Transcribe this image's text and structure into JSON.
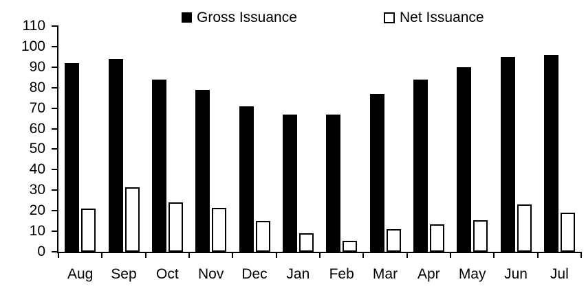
{
  "chart_data": {
    "type": "bar",
    "title": "",
    "xlabel": "",
    "ylabel": "",
    "categories": [
      "Aug",
      "Sep",
      "Oct",
      "Nov",
      "Dec",
      "Jan",
      "Feb",
      "Mar",
      "Apr",
      "May",
      "Jun",
      "Jul"
    ],
    "series": [
      {
        "name": "Gross Issuance",
        "fill": "#000000",
        "values": [
          92,
          94,
          84,
          79,
          71,
          67,
          67,
          77,
          84,
          90,
          95,
          96
        ]
      },
      {
        "name": "Net Issuance",
        "fill": "#ffffff",
        "stroke": "#000000",
        "values": [
          21,
          31.5,
          24,
          21.5,
          15,
          9,
          5.5,
          11,
          13.5,
          15.5,
          23,
          19
        ]
      }
    ],
    "ylim": [
      0,
      110
    ],
    "ytick_step": 10,
    "yticks": [
      0,
      10,
      20,
      30,
      40,
      50,
      60,
      70,
      80,
      90,
      100,
      110
    ],
    "grid": false,
    "legend_position": "top",
    "axis_color": "#000000",
    "background": "#ffffff"
  }
}
